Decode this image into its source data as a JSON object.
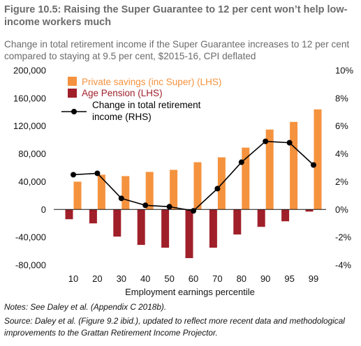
{
  "header": {
    "title": "Figure 10.5: Raising the Super Guarantee to 12 per cent won’t help low-income workers much",
    "subtitle": "Change in total retirement income if the Super Guarantee increases to 12 per cent compared to staying at 9.5 per cent, $2015-16, CPI deflated"
  },
  "footer": {
    "notes": "Notes: See Daley et al. (Appendix C 2018b).",
    "source": "Source: Daley et al. (Figure 9.2 ibid.), updated to reflect more recent data and methodological improvements to the Grattan Retirement Income Projector."
  },
  "colors": {
    "private_savings": "#f5923e",
    "age_pension": "#a0202a",
    "line": "#000000",
    "legend_private_text": "#f5923e",
    "legend_pension_text": "#a0202a",
    "axis_text": "#111111",
    "title_text": "#6b6b6b"
  },
  "chart_data": {
    "type": "bar",
    "categories": [
      "10",
      "20",
      "30",
      "40",
      "50",
      "60",
      "70",
      "80",
      "90",
      "95",
      "99"
    ],
    "xlabel": "Employment earnings percentile",
    "ylabel": "",
    "ylim": [
      -80000,
      200000
    ],
    "y_ticks": [
      "200,000",
      "160,000",
      "120,000",
      "80,000",
      "40,000",
      "0",
      "-40,000",
      "-80,000"
    ],
    "y2lim": [
      -0.04,
      0.1
    ],
    "y2_ticks": [
      "10%",
      "8%",
      "6%",
      "4%",
      "2%",
      "0%",
      "-2%",
      "-4%"
    ],
    "grid": false,
    "legend_position": "top-left",
    "series": [
      {
        "name": "Private savings (inc Super) (LHS)",
        "type": "bar",
        "axis": "left",
        "values": [
          40000,
          50000,
          48000,
          54000,
          57000,
          68000,
          75000,
          89000,
          115000,
          126000,
          144000
        ]
      },
      {
        "name": "Age Pension (LHS)",
        "type": "bar",
        "axis": "left",
        "values": [
          -14000,
          -20000,
          -39000,
          -51000,
          -55000,
          -70000,
          -55000,
          -36000,
          -25000,
          -17000,
          -3000
        ]
      },
      {
        "name": "Change in total retirement income (RHS)",
        "type": "line",
        "axis": "right",
        "values": [
          0.025,
          0.026,
          0.008,
          0.003,
          0.002,
          -0.001,
          0.015,
          0.034,
          0.049,
          0.048,
          0.032
        ]
      }
    ]
  }
}
